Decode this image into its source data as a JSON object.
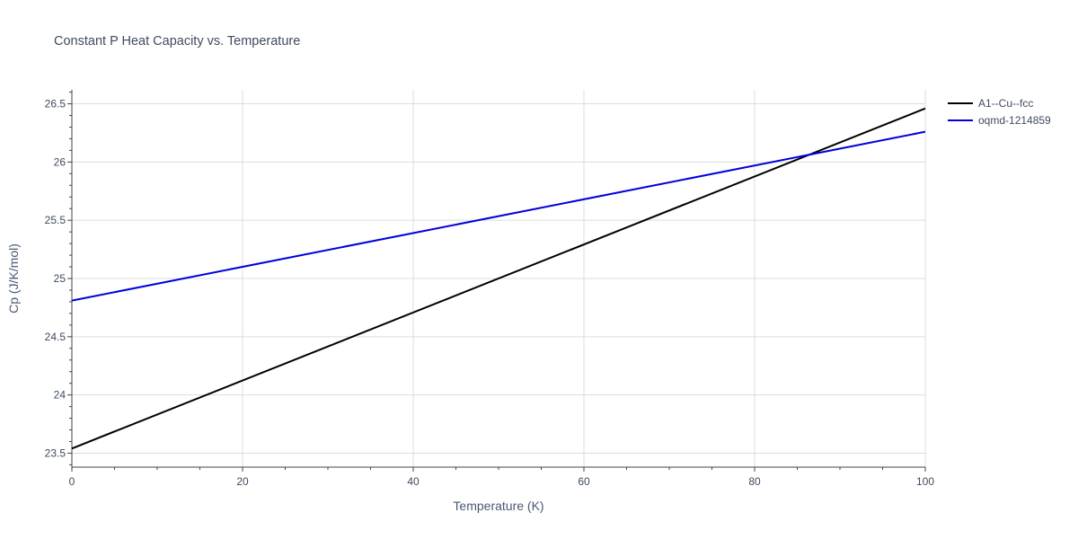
{
  "chart_data": {
    "type": "line",
    "title": "Constant P Heat Capacity vs. Temperature",
    "xlabel": "Temperature (K)",
    "ylabel": "Cp (J/K/mol)",
    "xlim": [
      0,
      100
    ],
    "ylim": [
      23.38,
      26.62
    ],
    "x_ticks": [
      0,
      20,
      40,
      60,
      80,
      100
    ],
    "y_ticks": [
      23.5,
      24,
      24.5,
      25,
      25.5,
      26,
      26.5
    ],
    "x_tick_labels": [
      "0",
      "20",
      "40",
      "60",
      "80",
      "100"
    ],
    "y_tick_labels": [
      "23.5",
      "24",
      "24.5",
      "25",
      "25.5",
      "26",
      "26.5"
    ],
    "grid": true,
    "legend_position": "top-right",
    "series": [
      {
        "name": "A1--Cu--fcc",
        "color": "#000000",
        "x": [
          0,
          100
        ],
        "y": [
          23.54,
          26.46
        ]
      },
      {
        "name": "oqmd-1214859",
        "color": "#0000dd",
        "x": [
          0,
          100
        ],
        "y": [
          24.81,
          26.26
        ]
      }
    ]
  }
}
